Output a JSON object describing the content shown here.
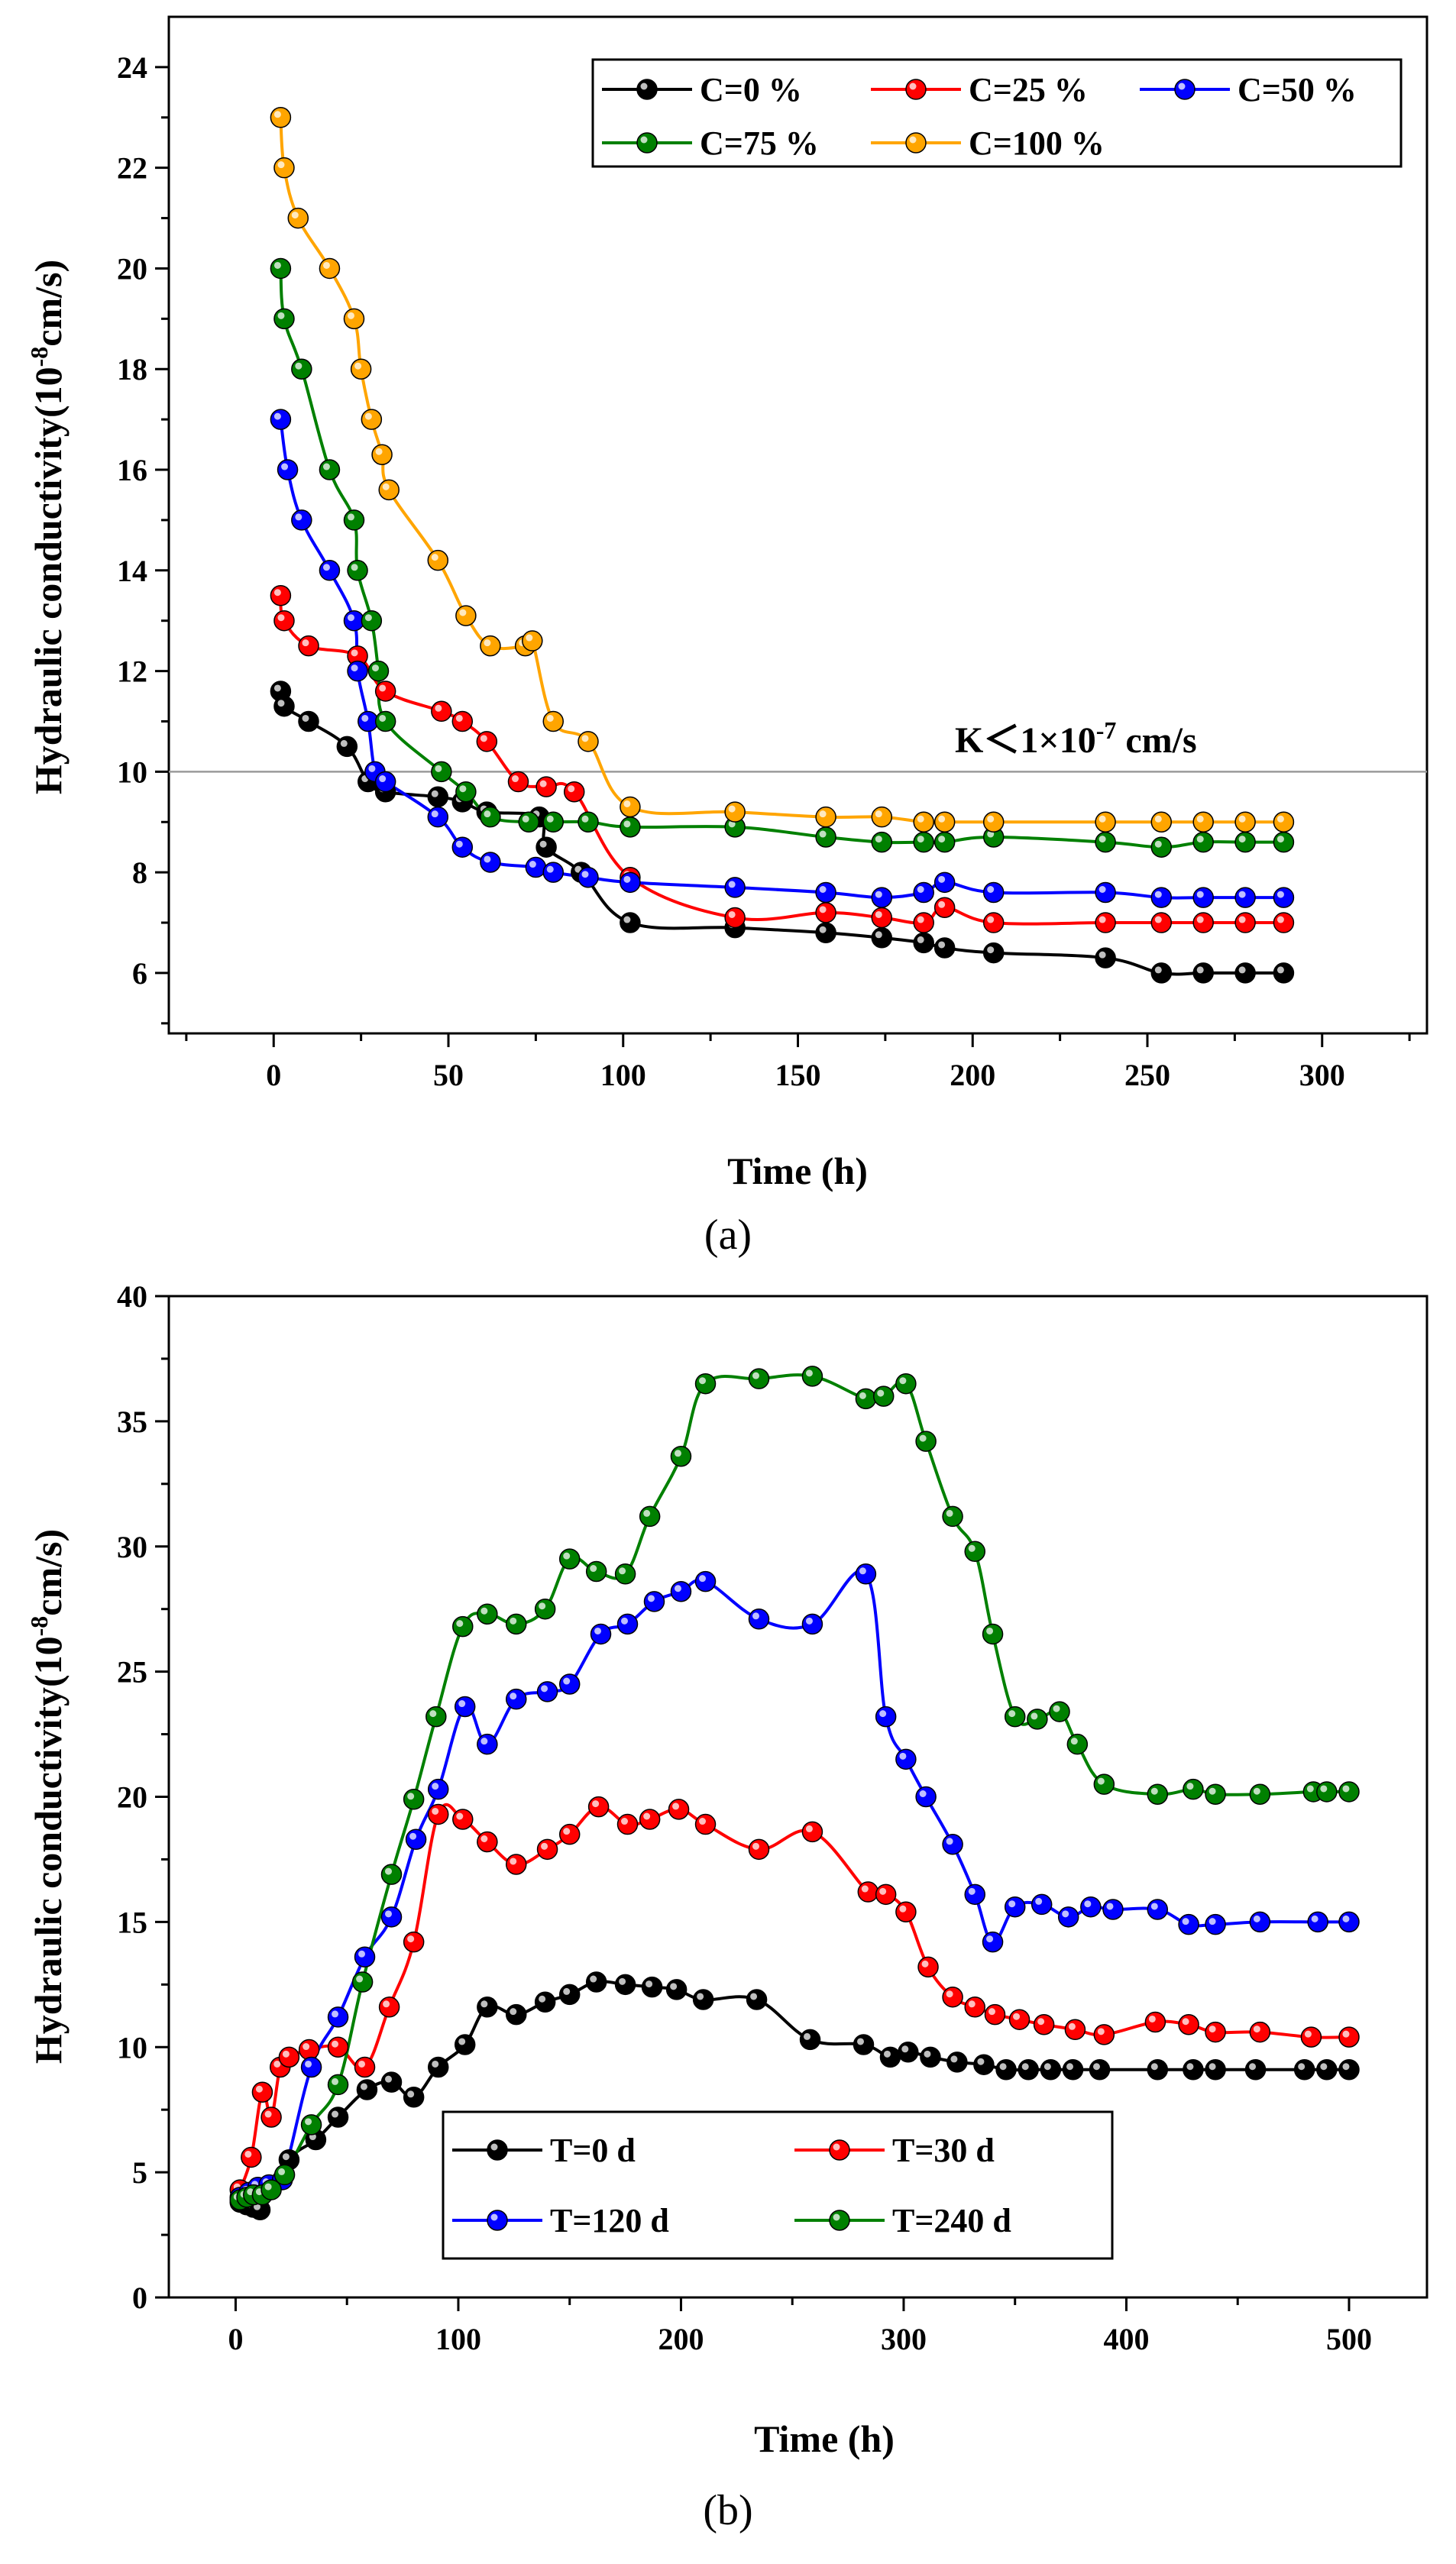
{
  "chart_data": [
    {
      "type": "line",
      "panel_label": "(a)",
      "xlabel": "Time (h)",
      "ylabel": "Hydraulic conductivity",
      "ylabel_unit_prefix": "(10",
      "ylabel_unit_exp": "-8",
      "ylabel_unit_suffix": "cm/s)",
      "xlim": [
        -30,
        330
      ],
      "ylim": [
        4.8,
        25
      ],
      "xticks": [
        0,
        50,
        100,
        150,
        200,
        250,
        300
      ],
      "yticks": [
        6,
        8,
        10,
        12,
        14,
        16,
        18,
        20,
        22,
        24
      ],
      "legend_position": "top-right",
      "threshold": {
        "y": 10,
        "text_prefix": "K＜1×10",
        "text_exp": "-7",
        "text_suffix": " cm/s"
      },
      "series": [
        {
          "name": "C=0 %",
          "color": "#000000",
          "x": [
            2,
            3,
            10,
            21,
            27,
            32,
            47,
            54,
            61,
            76,
            78,
            88,
            102,
            132,
            158,
            174,
            186,
            192,
            206,
            238,
            254,
            266,
            278,
            289
          ],
          "y": [
            11.6,
            11.3,
            11.0,
            10.5,
            9.8,
            9.6,
            9.5,
            9.4,
            9.2,
            9.1,
            8.5,
            8.0,
            7.0,
            6.9,
            6.8,
            6.7,
            6.6,
            6.5,
            6.4,
            6.3,
            6.0,
            6.0,
            6.0,
            6.0
          ]
        },
        {
          "name": "C=25 %",
          "color": "#ff0000",
          "x": [
            2,
            3,
            10,
            24,
            32,
            48,
            54,
            61,
            70,
            78,
            86,
            102,
            132,
            158,
            174,
            186,
            192,
            206,
            238,
            254,
            266,
            278,
            289
          ],
          "y": [
            13.5,
            13.0,
            12.5,
            12.3,
            11.6,
            11.2,
            11.0,
            10.6,
            9.8,
            9.7,
            9.6,
            7.9,
            7.1,
            7.2,
            7.1,
            7.0,
            7.3,
            7.0,
            7.0,
            7.0,
            7.0,
            7.0,
            7.0
          ]
        },
        {
          "name": "C=50 %",
          "color": "#0000ff",
          "x": [
            2,
            4,
            8,
            16,
            23,
            24,
            27,
            29,
            32,
            47,
            54,
            62,
            75,
            80,
            90,
            102,
            132,
            158,
            174,
            186,
            192,
            206,
            238,
            254,
            266,
            278,
            289
          ],
          "y": [
            17.0,
            16.0,
            15.0,
            14.0,
            13.0,
            12.0,
            11.0,
            10.0,
            9.8,
            9.1,
            8.5,
            8.2,
            8.1,
            8.0,
            7.9,
            7.8,
            7.7,
            7.6,
            7.5,
            7.6,
            7.8,
            7.6,
            7.6,
            7.5,
            7.5,
            7.5,
            7.5
          ]
        },
        {
          "name": "C=75 %",
          "color": "#008000",
          "x": [
            2,
            3,
            8,
            16,
            23,
            24,
            28,
            30,
            32,
            48,
            55,
            62,
            73,
            80,
            90,
            102,
            132,
            158,
            174,
            186,
            192,
            206,
            238,
            254,
            266,
            278,
            289
          ],
          "y": [
            20.0,
            19.0,
            18.0,
            16.0,
            15.0,
            14.0,
            13.0,
            12.0,
            11.0,
            10.0,
            9.6,
            9.1,
            9.0,
            9.0,
            9.0,
            8.9,
            8.9,
            8.7,
            8.6,
            8.6,
            8.6,
            8.7,
            8.6,
            8.5,
            8.6,
            8.6,
            8.6
          ]
        },
        {
          "name": "C=100 %",
          "color": "#ffa500",
          "x": [
            2,
            3,
            7,
            16,
            23,
            25,
            28,
            31,
            33,
            47,
            55,
            62,
            72,
            74,
            80,
            90,
            102,
            132,
            158,
            174,
            186,
            192,
            206,
            238,
            254,
            266,
            278,
            289
          ],
          "y": [
            23.0,
            22.0,
            21.0,
            20.0,
            19.0,
            18.0,
            17.0,
            16.3,
            15.6,
            14.2,
            13.1,
            12.5,
            12.5,
            12.6,
            11.0,
            10.6,
            9.3,
            9.2,
            9.1,
            9.1,
            9.0,
            9.0,
            9.0,
            9.0,
            9.0,
            9.0,
            9.0,
            9.0
          ]
        }
      ]
    },
    {
      "type": "line",
      "panel_label": "(b)",
      "xlabel": "Time (h)",
      "ylabel": "Hydraulic conductivity",
      "ylabel_unit_prefix": "(10",
      "ylabel_unit_exp": "-8",
      "ylabel_unit_suffix": "cm/s)",
      "xlim": [
        -30,
        535
      ],
      "ylim": [
        0,
        40
      ],
      "xticks": [
        0,
        100,
        200,
        300,
        400,
        500
      ],
      "yticks": [
        0,
        5,
        10,
        15,
        20,
        25,
        30,
        35,
        40
      ],
      "legend_position": "bottom-left",
      "series": [
        {
          "name": "T=0 d",
          "color": "#000000",
          "x": [
            2,
            5,
            8,
            11,
            24,
            36,
            46,
            59,
            70,
            80,
            91,
            103,
            113,
            126,
            139,
            150,
            162,
            175,
            187,
            198,
            210,
            234,
            258,
            282,
            294,
            302,
            312,
            324,
            336,
            346,
            356,
            366,
            376,
            388,
            414,
            430,
            440,
            458,
            480,
            490,
            500
          ],
          "y": [
            3.8,
            3.7,
            3.6,
            3.5,
            5.5,
            6.3,
            7.2,
            8.3,
            8.6,
            8.0,
            9.2,
            10.1,
            11.6,
            11.3,
            11.8,
            12.1,
            12.6,
            12.5,
            12.4,
            12.3,
            11.9,
            11.9,
            10.3,
            10.1,
            9.6,
            9.8,
            9.6,
            9.4,
            9.3,
            9.1,
            9.1,
            9.1,
            9.1,
            9.1,
            9.1,
            9.1,
            9.1,
            9.1,
            9.1,
            9.1,
            9.1
          ]
        },
        {
          "name": "T=30 d",
          "color": "#ff0000",
          "x": [
            2,
            7,
            12,
            16,
            20,
            24,
            33,
            46,
            58,
            69,
            80,
            91,
            102,
            113,
            126,
            140,
            150,
            163,
            176,
            186,
            199,
            211,
            235,
            259,
            284,
            292,
            301,
            311,
            322,
            332,
            341,
            352,
            363,
            377,
            390,
            413,
            428,
            440,
            460,
            483,
            500
          ],
          "y": [
            4.3,
            5.6,
            8.2,
            7.2,
            9.2,
            9.6,
            9.9,
            10.0,
            9.2,
            11.6,
            14.2,
            19.3,
            19.1,
            18.2,
            17.3,
            17.9,
            18.5,
            19.6,
            18.9,
            19.1,
            19.5,
            18.9,
            17.9,
            18.6,
            16.2,
            16.1,
            15.4,
            13.2,
            12.0,
            11.6,
            11.3,
            11.1,
            10.9,
            10.7,
            10.5,
            11.0,
            10.9,
            10.6,
            10.6,
            10.4,
            10.4
          ]
        },
        {
          "name": "T=120 d",
          "color": "#0000ff",
          "x": [
            2,
            6,
            10,
            15,
            21,
            34,
            46,
            58,
            70,
            81,
            91,
            103,
            113,
            126,
            140,
            150,
            164,
            176,
            188,
            200,
            211,
            235,
            259,
            283,
            292,
            301,
            310,
            322,
            332,
            340,
            350,
            362,
            374,
            384,
            394,
            414,
            428,
            440,
            460,
            486,
            500
          ],
          "y": [
            4.0,
            4.2,
            4.4,
            4.5,
            4.7,
            9.2,
            11.2,
            13.6,
            15.2,
            18.3,
            20.3,
            23.6,
            22.1,
            23.9,
            24.2,
            24.5,
            26.5,
            26.9,
            27.8,
            28.2,
            28.6,
            27.1,
            26.9,
            28.9,
            23.2,
            21.5,
            20.0,
            18.1,
            16.1,
            14.2,
            15.6,
            15.7,
            15.2,
            15.6,
            15.5,
            15.5,
            14.9,
            14.9,
            15.0,
            15.0,
            15.0
          ]
        },
        {
          "name": "T=240 d",
          "color": "#008000",
          "x": [
            2,
            5,
            8,
            12,
            16,
            22,
            34,
            46,
            57,
            70,
            80,
            90,
            102,
            113,
            126,
            139,
            150,
            162,
            175,
            186,
            200,
            211,
            235,
            259,
            283,
            291,
            301,
            310,
            322,
            332,
            340,
            350,
            360,
            370,
            378,
            390,
            414,
            430,
            440,
            460,
            484,
            490,
            500
          ],
          "y": [
            3.9,
            4.0,
            4.1,
            4.1,
            4.3,
            4.9,
            6.9,
            8.5,
            12.6,
            16.9,
            19.9,
            23.2,
            26.8,
            27.3,
            26.9,
            27.5,
            29.5,
            29.0,
            28.9,
            31.2,
            33.6,
            36.5,
            36.7,
            36.8,
            35.9,
            36.0,
            36.5,
            34.2,
            31.2,
            29.8,
            26.5,
            23.2,
            23.1,
            23.4,
            22.1,
            20.5,
            20.1,
            20.3,
            20.1,
            20.1,
            20.2,
            20.2,
            20.2
          ]
        }
      ]
    }
  ]
}
